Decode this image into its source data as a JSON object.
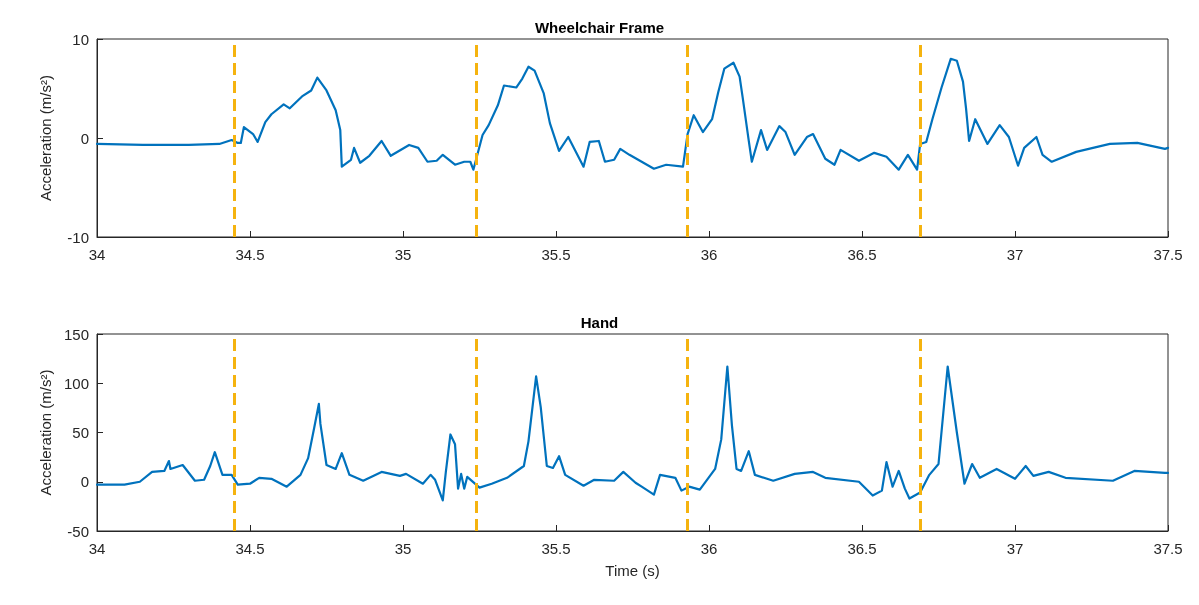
{
  "chart_data": [
    {
      "type": "line",
      "title": "Wheelchair Frame",
      "ylabel": "Acceleration (m/s²)",
      "marker": "none",
      "grid": false,
      "xlim": [
        34,
        37.5
      ],
      "xticks": [
        34,
        34.5,
        35,
        35.5,
        36,
        36.5,
        37,
        37.5
      ],
      "ylim": [
        -10,
        10
      ],
      "yticks": [
        -10,
        0,
        10
      ],
      "series": [
        {
          "color": "#0072bd",
          "x": [
            34,
            34.15,
            34.3,
            34.4,
            34.44,
            34.46,
            34.47,
            34.48,
            34.51,
            34.525,
            34.55,
            34.57,
            34.61,
            34.63,
            34.67,
            34.7,
            34.72,
            34.75,
            34.78,
            34.795,
            34.8,
            34.83,
            34.84,
            34.86,
            34.89,
            34.93,
            34.96,
            35.02,
            35.05,
            35.08,
            35.11,
            35.13,
            35.17,
            35.2,
            35.22,
            35.23,
            35.26,
            35.28,
            35.31,
            35.33,
            35.37,
            35.39,
            35.41,
            35.43,
            35.46,
            35.48,
            35.51,
            35.54,
            35.59,
            35.61,
            35.64,
            35.66,
            35.69,
            35.71,
            35.74,
            35.78,
            35.82,
            35.86,
            35.915,
            35.93,
            35.95,
            35.98,
            36.01,
            36.03,
            36.05,
            36.08,
            36.1,
            36.11,
            36.13,
            36.14,
            36.17,
            36.19,
            36.23,
            36.25,
            36.28,
            36.32,
            36.34,
            36.38,
            36.41,
            36.43,
            36.49,
            36.54,
            36.58,
            36.62,
            36.65,
            36.68,
            36.69,
            36.71,
            36.73,
            36.76,
            36.79,
            36.81,
            36.83,
            36.84,
            36.85,
            36.87,
            36.91,
            36.95,
            36.98,
            37.01,
            37.03,
            37.07,
            37.09,
            37.12,
            37.2,
            37.31,
            37.4,
            37.49,
            37.5
          ],
          "values": [
            -0.6,
            -0.7,
            -0.7,
            -0.6,
            -0.2,
            -0.5,
            -0.5,
            1.1,
            0.4,
            -0.4,
            1.6,
            2.4,
            3.4,
            3.0,
            4.2,
            4.8,
            6.1,
            4.8,
            2.8,
            0.8,
            -2.9,
            -2.2,
            -1.0,
            -2.5,
            -1.8,
            -0.3,
            -1.8,
            -0.7,
            -1.0,
            -2.4,
            -2.3,
            -1.7,
            -2.7,
            -2.4,
            -2.4,
            -3.2,
            0.3,
            1.3,
            3.3,
            5.3,
            5.1,
            6.0,
            7.2,
            6.8,
            4.5,
            1.5,
            -1.3,
            0.1,
            -2.9,
            -0.4,
            -0.3,
            -2.4,
            -2.2,
            -1.1,
            -1.7,
            -2.4,
            -3.1,
            -2.7,
            -2.9,
            0.4,
            2.3,
            0.6,
            1.9,
            4.6,
            7.0,
            7.6,
            6.2,
            4.1,
            -0.3,
            -2.4,
            0.8,
            -1.2,
            1.2,
            0.6,
            -1.7,
            0.1,
            0.4,
            -2.1,
            -2.7,
            -1.2,
            -2.3,
            -1.5,
            -1.9,
            -3.2,
            -1.7,
            -3.2,
            -0.6,
            -0.4,
            1.9,
            5.1,
            8.0,
            7.8,
            5.7,
            3.0,
            -0.3,
            1.9,
            -0.6,
            1.3,
            0.1,
            -2.8,
            -1.0,
            0.1,
            -1.7,
            -2.4,
            -1.4,
            -0.6,
            -0.5,
            -1.1,
            -1.0
          ]
        }
      ],
      "ref_lines": [
        {
          "axis": "x",
          "value": 34.45,
          "color": "#f5b30f",
          "line_style": "dashed"
        },
        {
          "axis": "x",
          "value": 35.24,
          "color": "#f5b30f",
          "line_style": "dashed"
        },
        {
          "axis": "x",
          "value": 35.93,
          "color": "#f5b30f",
          "line_style": "dashed"
        },
        {
          "axis": "x",
          "value": 36.69,
          "color": "#f5b30f",
          "line_style": "dashed"
        }
      ]
    },
    {
      "type": "line",
      "title": "Hand",
      "xlabel": "Time (s)",
      "ylabel": "Acceleration (m/s²)",
      "marker": "none",
      "grid": false,
      "xlim": [
        34,
        37.5
      ],
      "xticks": [
        34,
        34.5,
        35,
        35.5,
        36,
        36.5,
        37,
        37.5
      ],
      "ylim": [
        -50,
        150
      ],
      "yticks": [
        -50,
        0,
        50,
        100,
        150
      ],
      "series": [
        {
          "color": "#0072bd",
          "x": [
            34,
            34.09,
            34.14,
            34.18,
            34.22,
            34.235,
            34.24,
            34.28,
            34.32,
            34.35,
            34.37,
            34.385,
            34.41,
            34.44,
            34.46,
            34.5,
            34.53,
            34.57,
            34.62,
            34.665,
            34.69,
            34.71,
            34.725,
            34.73,
            34.75,
            34.78,
            34.8,
            34.825,
            34.87,
            34.93,
            34.99,
            35.01,
            35.065,
            35.09,
            35.105,
            35.13,
            35.14,
            35.155,
            35.17,
            35.18,
            35.19,
            35.2,
            35.21,
            35.25,
            35.29,
            35.34,
            35.395,
            35.41,
            35.435,
            35.45,
            35.47,
            35.49,
            35.51,
            35.53,
            35.59,
            35.625,
            35.69,
            35.72,
            35.76,
            35.78,
            35.82,
            35.84,
            35.89,
            35.91,
            35.935,
            35.97,
            36.02,
            36.04,
            36.06,
            36.075,
            36.09,
            36.105,
            36.13,
            36.15,
            36.21,
            36.28,
            36.34,
            36.38,
            36.49,
            36.535,
            36.565,
            36.58,
            36.6,
            36.62,
            36.64,
            36.655,
            36.69,
            36.72,
            36.75,
            36.78,
            36.81,
            36.835,
            36.86,
            36.885,
            36.94,
            37,
            37.035,
            37.06,
            37.11,
            37.165,
            37.32,
            37.39,
            37.49,
            37.5
          ],
          "values": [
            -3,
            -3,
            0,
            10,
            11,
            21,
            13,
            17,
            1,
            2,
            16,
            30,
            7,
            7,
            -3,
            -2,
            4,
            3,
            -5,
            7,
            24,
            55,
            79,
            59,
            17,
            13,
            29,
            7,
            1,
            10,
            6,
            8,
            -2,
            7,
            2,
            -19,
            10,
            48,
            38,
            -7,
            8,
            -7,
            5,
            -6,
            -2,
            4,
            16,
            41,
            107,
            76,
            16,
            14,
            26,
            7,
            -4,
            2,
            1,
            10,
            -1,
            -5,
            -13,
            7,
            4,
            -9,
            -5,
            -8,
            13,
            43,
            117,
            57,
            13,
            11,
            31,
            7,
            1,
            8,
            10,
            4,
            0,
            -14,
            -9,
            20,
            -5,
            11,
            -7,
            -17,
            -11,
            7,
            18,
            117,
            50,
            -2,
            18,
            4,
            13,
            3,
            16,
            6,
            10,
            4,
            1,
            11,
            9,
            9
          ]
        }
      ],
      "ref_lines": [
        {
          "axis": "x",
          "value": 34.45,
          "color": "#f5b30f",
          "line_style": "dashed"
        },
        {
          "axis": "x",
          "value": 35.24,
          "color": "#f5b30f",
          "line_style": "dashed"
        },
        {
          "axis": "x",
          "value": 35.93,
          "color": "#f5b30f",
          "line_style": "dashed"
        },
        {
          "axis": "x",
          "value": 36.69,
          "color": "#f5b30f",
          "line_style": "dashed"
        }
      ]
    }
  ]
}
